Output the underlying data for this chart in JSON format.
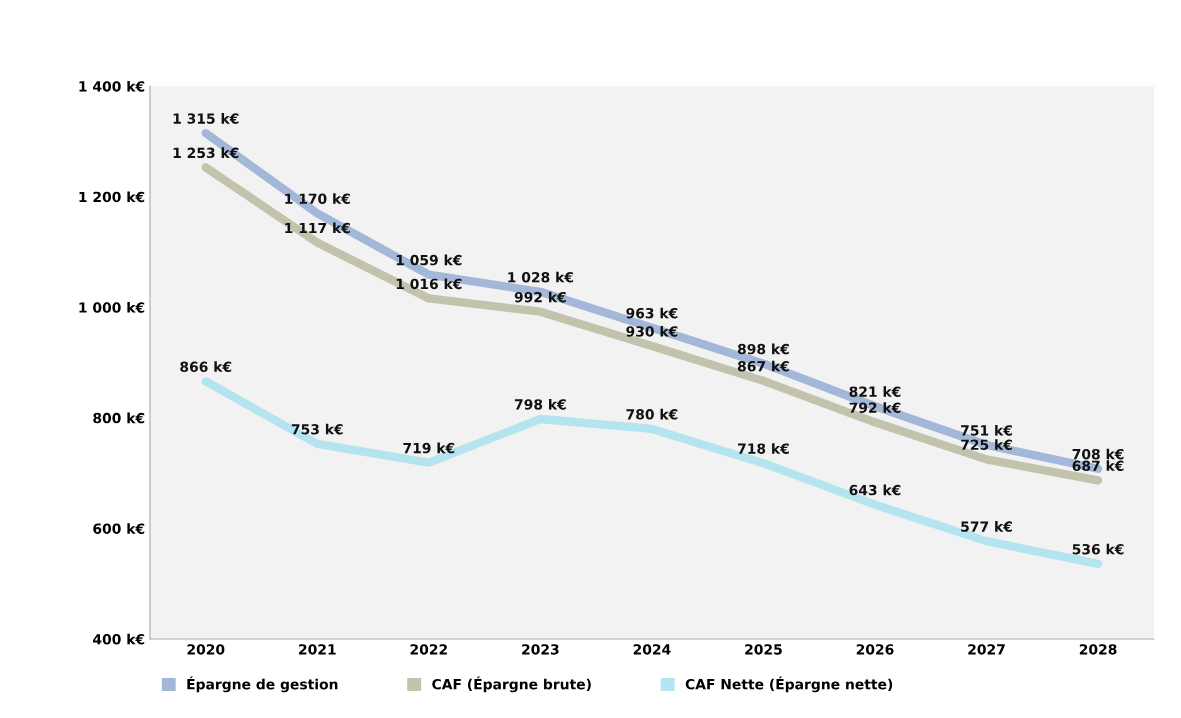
{
  "chart_data": {
    "type": "line",
    "categories": [
      "2020",
      "2021",
      "2022",
      "2023",
      "2024",
      "2025",
      "2026",
      "2027",
      "2028"
    ],
    "series": [
      {
        "name": "Épargne de gestion",
        "color": "#a3b8d8",
        "values": [
          1315,
          1170,
          1059,
          1028,
          963,
          898,
          821,
          751,
          708
        ],
        "value_labels": [
          "1 315 k€",
          "1 170 k€",
          "1 059 k€",
          "1 028 k€",
          "963 k€",
          "898 k€",
          "821 k€",
          "751 k€",
          "708 k€"
        ]
      },
      {
        "name": "CAF (Épargne brute)",
        "color": "#c3c2ad",
        "values": [
          1253,
          1117,
          1016,
          992,
          930,
          867,
          792,
          725,
          687
        ],
        "value_labels": [
          "1 253 k€",
          "1 117 k€",
          "1 016 k€",
          "992 k€",
          "930 k€",
          "867 k€",
          "792 k€",
          "725 k€",
          "687 k€"
        ]
      },
      {
        "name": "CAF Nette (Épargne nette)",
        "color": "#b4e4f0",
        "values": [
          866,
          753,
          719,
          798,
          780,
          718,
          643,
          577,
          536
        ],
        "value_labels": [
          "866 k€",
          "753 k€",
          "719 k€",
          "798 k€",
          "780 k€",
          "718 k€",
          "643 k€",
          "577 k€",
          "536 k€"
        ]
      }
    ],
    "ylim": [
      400,
      1400
    ],
    "yticks": [
      {
        "value": 400,
        "label": "400 k€"
      },
      {
        "value": 600,
        "label": "600 k€"
      },
      {
        "value": 800,
        "label": "800 k€"
      },
      {
        "value": 1000,
        "label": "1 000 k€"
      },
      {
        "value": 1200,
        "label": "1 200 k€"
      },
      {
        "value": 1400,
        "label": "1 400 k€"
      }
    ],
    "legend": "bottom",
    "grid": false,
    "marker": "none",
    "line_style": "solid"
  }
}
